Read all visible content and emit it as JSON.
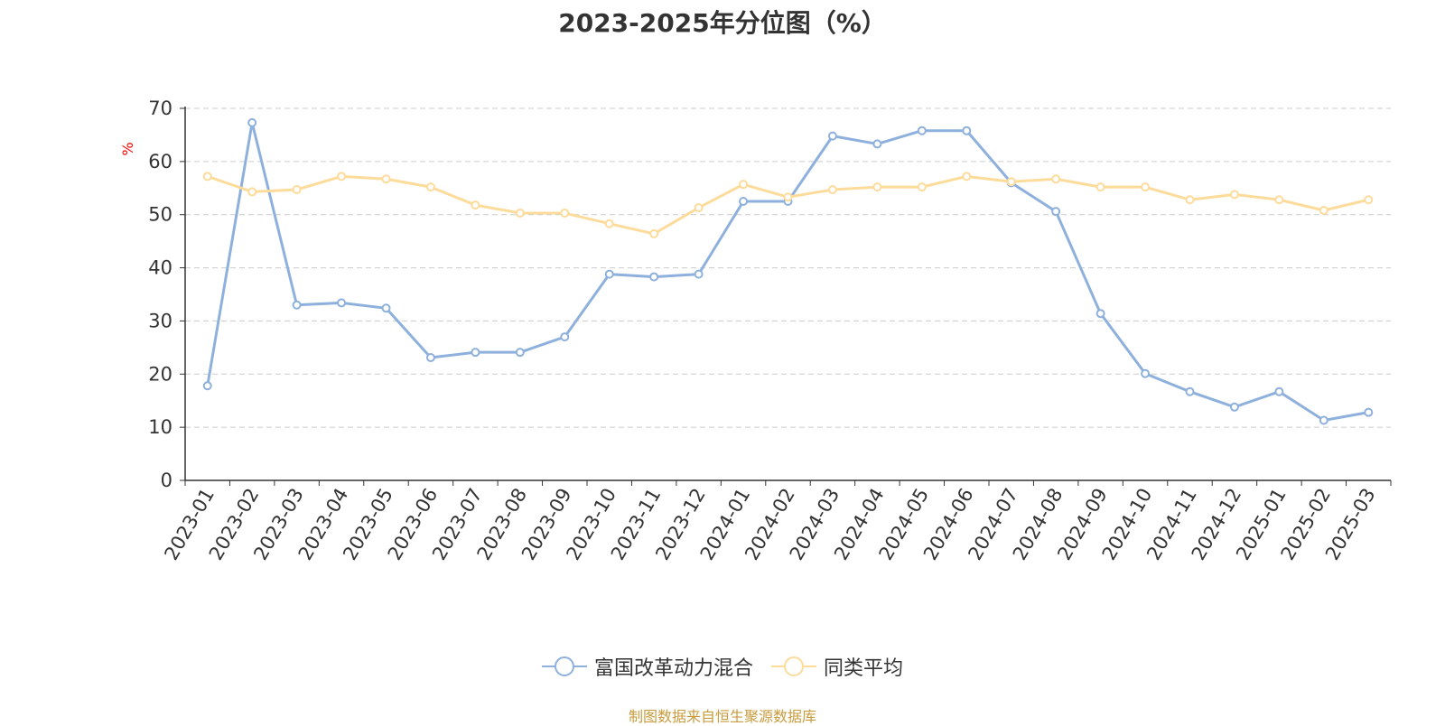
{
  "chart_data": {
    "type": "line",
    "title": "2023-2025年分位图（%）",
    "ylabel": "%",
    "ylim": [
      0,
      70
    ],
    "yticks": [
      0,
      10,
      20,
      30,
      40,
      50,
      60,
      70
    ],
    "grid": true,
    "legend_position": "bottom-center",
    "categories": [
      "2023-01",
      "2023-02",
      "2023-03",
      "2023-04",
      "2023-05",
      "2023-06",
      "2023-07",
      "2023-08",
      "2023-09",
      "2023-10",
      "2023-11",
      "2023-12",
      "2024-01",
      "2024-02",
      "2024-03",
      "2024-04",
      "2024-05",
      "2024-06",
      "2024-07",
      "2024-08",
      "2024-09",
      "2024-10",
      "2024-11",
      "2024-12",
      "2025-01",
      "2025-02",
      "2025-03"
    ],
    "series": [
      {
        "name": "富国改革动力混合",
        "color": "#8eb0dc",
        "values": [
          17.8,
          67.3,
          33.0,
          33.4,
          32.4,
          23.1,
          24.1,
          24.1,
          27.0,
          38.8,
          38.3,
          38.8,
          52.5,
          52.5,
          64.8,
          63.3,
          65.8,
          65.8,
          56.0,
          50.6,
          31.4,
          20.1,
          16.7,
          13.8,
          16.7,
          11.3,
          12.8
        ]
      },
      {
        "name": "同类平均",
        "color": "#fddb9b",
        "values": [
          57.2,
          54.3,
          54.7,
          57.2,
          56.7,
          55.2,
          51.8,
          50.3,
          50.3,
          48.3,
          46.4,
          51.3,
          55.7,
          53.3,
          54.7,
          55.2,
          55.2,
          57.2,
          56.2,
          56.7,
          55.2,
          55.2,
          52.8,
          53.8,
          52.8,
          50.8,
          52.8
        ]
      }
    ]
  },
  "axis_colors": {
    "ylabel": "#ff0000",
    "axis": "#333333",
    "grid": "#cccccc"
  },
  "footer": {
    "source": "制图数据来自恒生聚源数据库",
    "source_color": "#c89b3c"
  }
}
